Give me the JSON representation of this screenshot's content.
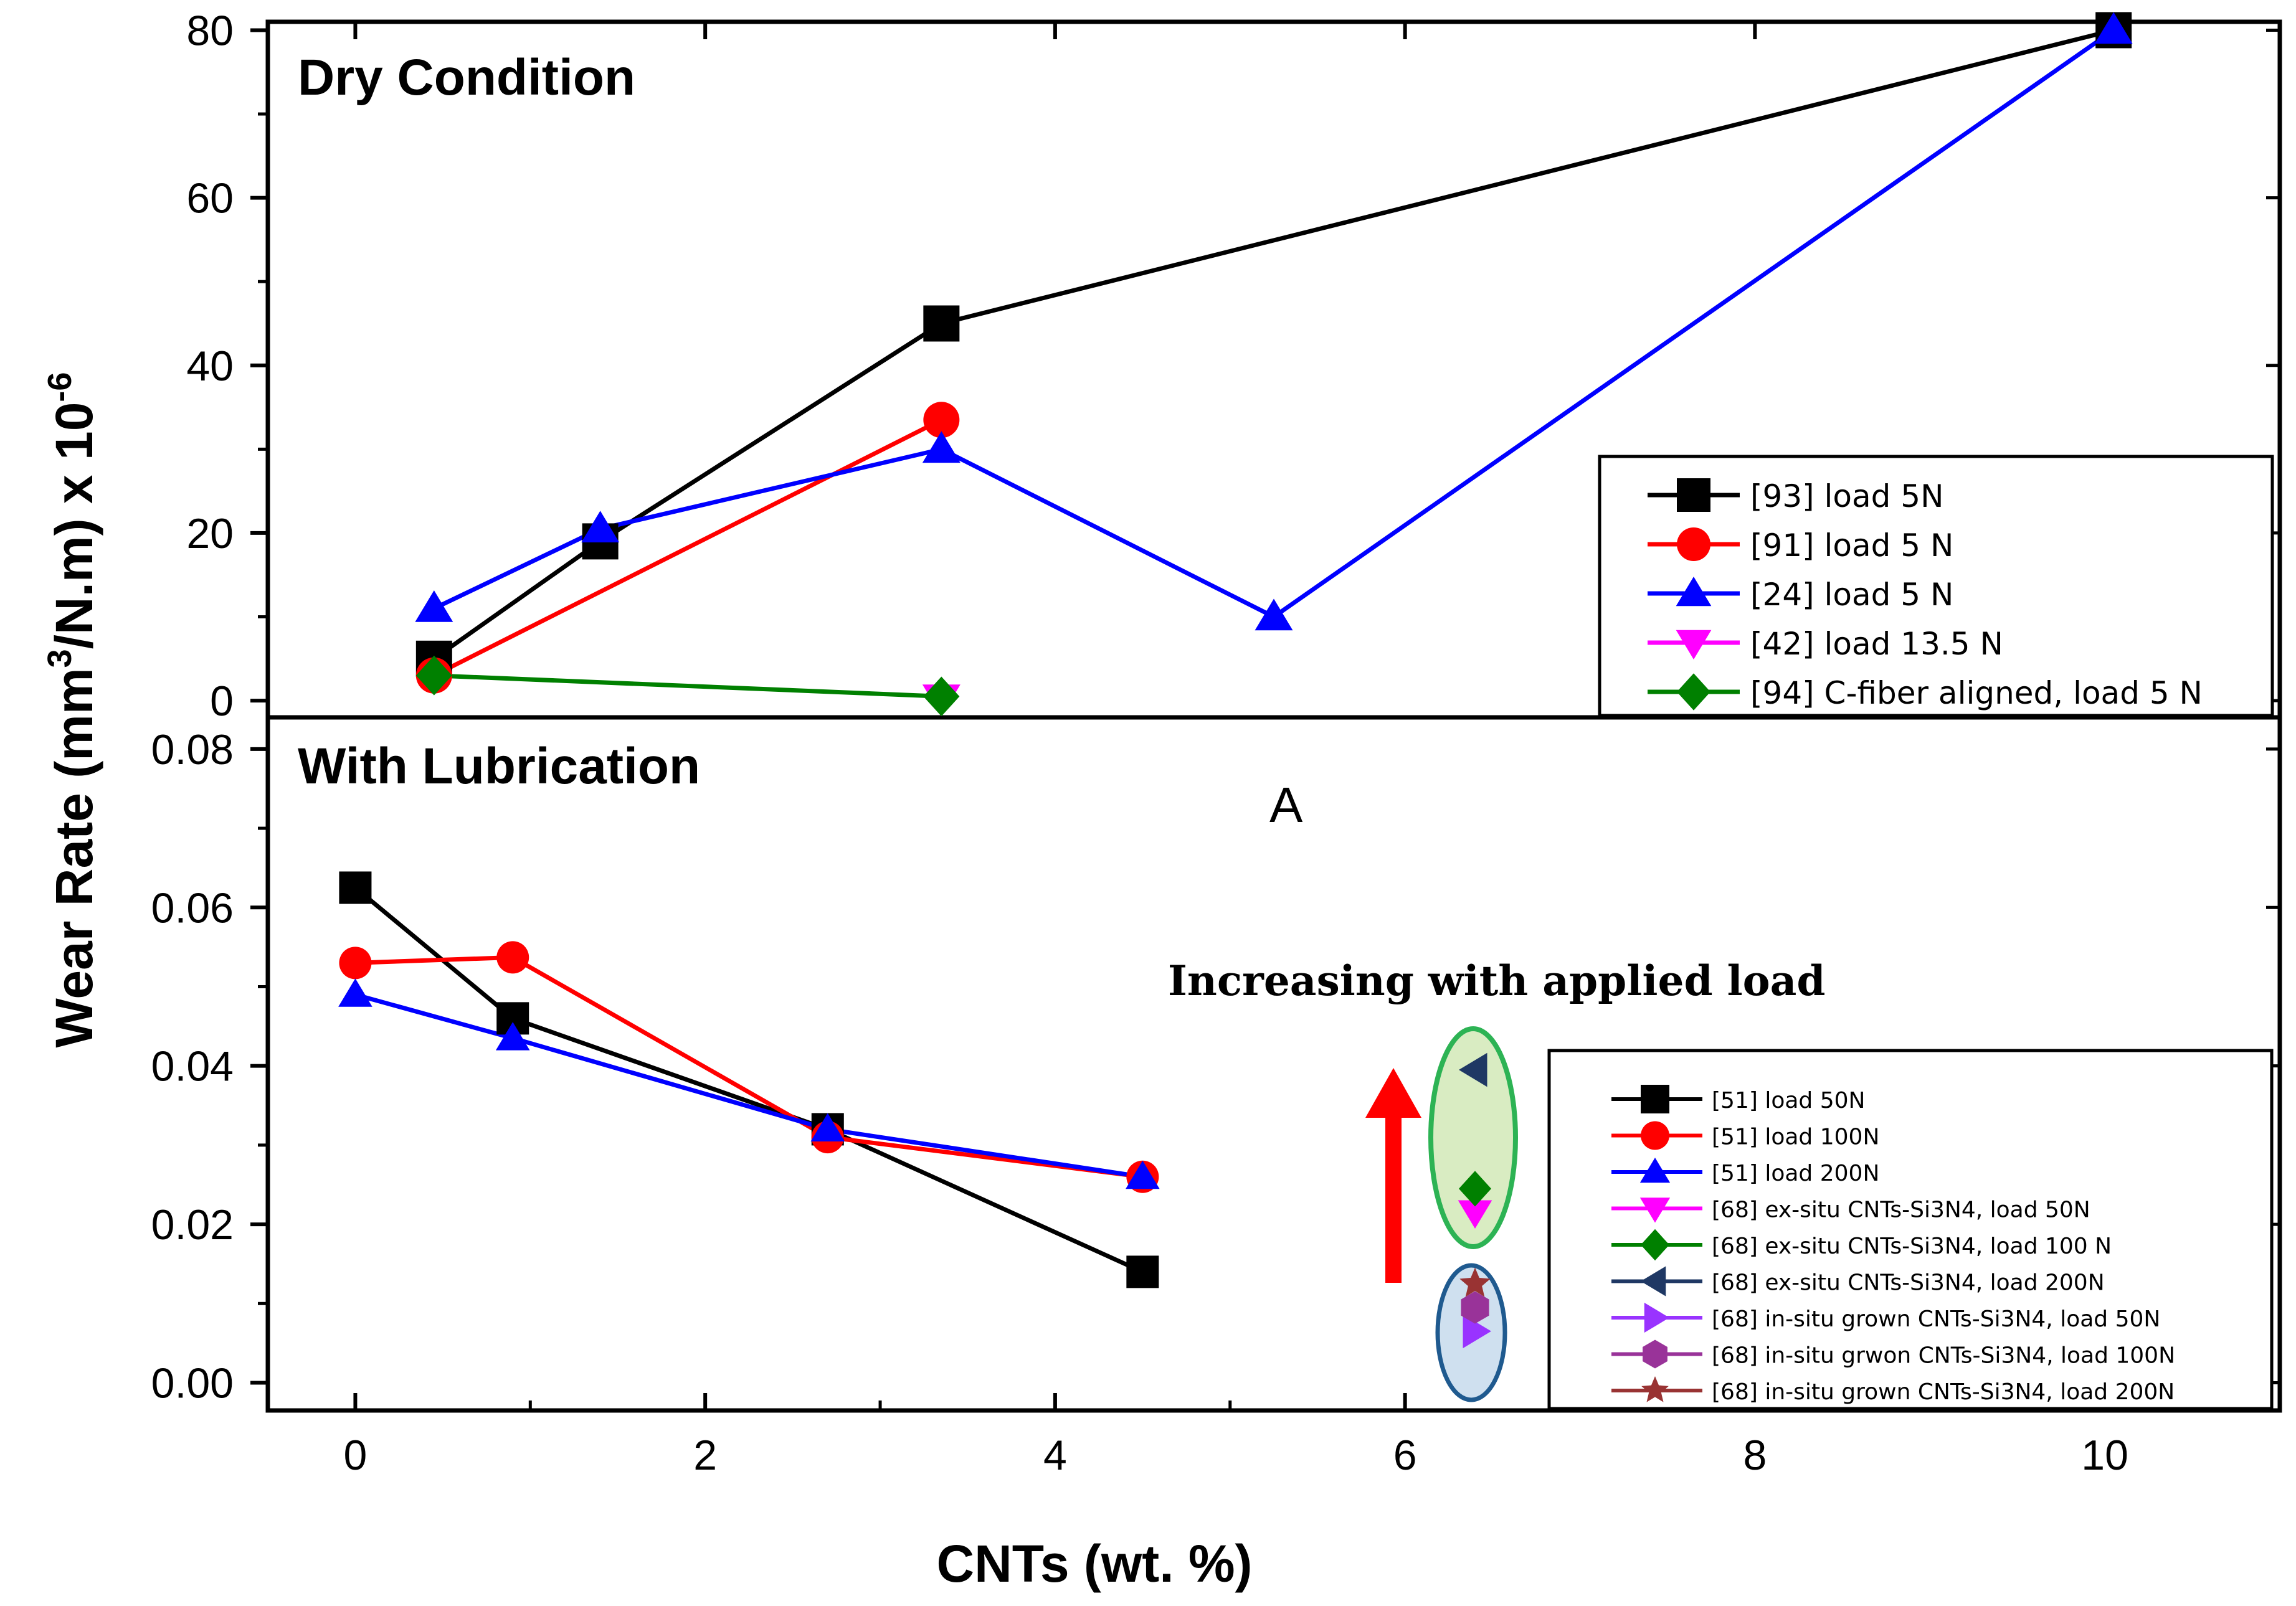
{
  "chart_data": {
    "type": "line",
    "xlabel": "CNTs (wt. %)",
    "ylabel": "Wear Rate (mm³/N.m) x 10⁻⁶",
    "ylabel_parts": {
      "main": "Wear Rate (mm",
      "sup1": "3",
      "mid": "/N.m) x 10",
      "sup2": "-6"
    },
    "xlim": [
      -0.5,
      11
    ],
    "xticks": [
      0,
      2,
      4,
      6,
      8,
      10
    ],
    "xtick_labels": [
      "0",
      "2",
      "4",
      "6",
      "8",
      "10"
    ],
    "panels": [
      {
        "title": "Dry Condition",
        "ylim": [
          -2,
          81
        ],
        "yticks": [
          0,
          20,
          40,
          60,
          80
        ],
        "ytick_labels": [
          "0",
          "20",
          "40",
          "60",
          "80"
        ],
        "legend_position": "lower-right",
        "series": [
          {
            "name": "[93] load 5N",
            "color": "#000000",
            "marker": "square",
            "x": [
              0.45,
              1.4,
              3.35,
              10.05
            ],
            "y": [
              5,
              19,
              45,
              80
            ]
          },
          {
            "name": "[91] load 5 N",
            "color": "#ff0000",
            "marker": "circle",
            "x": [
              0.45,
              3.35
            ],
            "y": [
              3,
              33.5
            ]
          },
          {
            "name": "[24] load 5 N",
            "color": "#0000ff",
            "marker": "triangle-up",
            "x": [
              0.45,
              1.4,
              3.35,
              5.25,
              10.05
            ],
            "y": [
              11,
              20.5,
              30,
              10,
              80
            ]
          },
          {
            "name": "[42] load 13.5 N",
            "color": "#ff00ff",
            "marker": "triangle-down",
            "x": [
              3.35
            ],
            "y": [
              0.3
            ]
          },
          {
            "name": "[94] C-fiber aligned, load 5 N",
            "color": "#008000",
            "marker": "diamond",
            "x": [
              0.45,
              3.35
            ],
            "y": [
              3,
              0.5
            ]
          }
        ]
      },
      {
        "title": "With Lubrication",
        "ylim": [
          -0.0035,
          0.084
        ],
        "yticks": [
          0.0,
          0.02,
          0.04,
          0.06,
          0.08
        ],
        "ytick_labels": [
          "0.00",
          "0.02",
          "0.04",
          "0.06",
          "0.08"
        ],
        "legend_position": "lower-right",
        "series": [
          {
            "name": "[51] load 50N",
            "color": "#000000",
            "marker": "square",
            "x": [
              0,
              0.9,
              2.7,
              4.5
            ],
            "y": [
              0.0625,
              0.046,
              0.032,
              0.014
            ]
          },
          {
            "name": "[51] load 100N",
            "color": "#ff0000",
            "marker": "circle",
            "x": [
              0,
              0.9,
              2.7,
              4.5
            ],
            "y": [
              0.053,
              0.0537,
              0.031,
              0.026
            ]
          },
          {
            "name": "[51] load 200N",
            "color": "#0000ff",
            "marker": "triangle-up",
            "x": [
              0,
              0.9,
              2.7,
              4.5
            ],
            "y": [
              0.049,
              0.0435,
              0.032,
              0.026
            ]
          },
          {
            "name": "[68] ex-situ CNTs-Si3N4, load 50N",
            "color": "#ff00ff",
            "marker": "triangle-down",
            "x": [
              6.4
            ],
            "y": [
              0.0215
            ]
          },
          {
            "name": "[68] ex-situ CNTs-Si3N4, load 100 N",
            "color": "#008000",
            "marker": "diamond",
            "x": [
              6.4
            ],
            "y": [
              0.0245
            ]
          },
          {
            "name": "[68] ex-situ CNTs-Si3N4, load 200N",
            "color": "#1f3864",
            "marker": "triangle-left",
            "x": [
              6.4
            ],
            "y": [
              0.0395
            ]
          },
          {
            "name": "[68] in-situ grown CNTs-Si3N4, load 50N",
            "color": "#9933ff",
            "marker": "triangle-right",
            "x": [
              6.4
            ],
            "y": [
              0.0065
            ]
          },
          {
            "name": "[68] in-situ grwon CNTs-Si3N4, load 100N",
            "color": "#993399",
            "marker": "hexagon",
            "x": [
              6.4
            ],
            "y": [
              0.0095
            ]
          },
          {
            "name": "[68] in-situ grown CNTs-Si3N4, load 200N",
            "color": "#993333",
            "marker": "star",
            "x": [
              6.4
            ],
            "y": [
              0.0125
            ]
          }
        ],
        "annotations": {
          "note": "Increasing with applied load",
          "marker_label": "A"
        }
      }
    ]
  }
}
